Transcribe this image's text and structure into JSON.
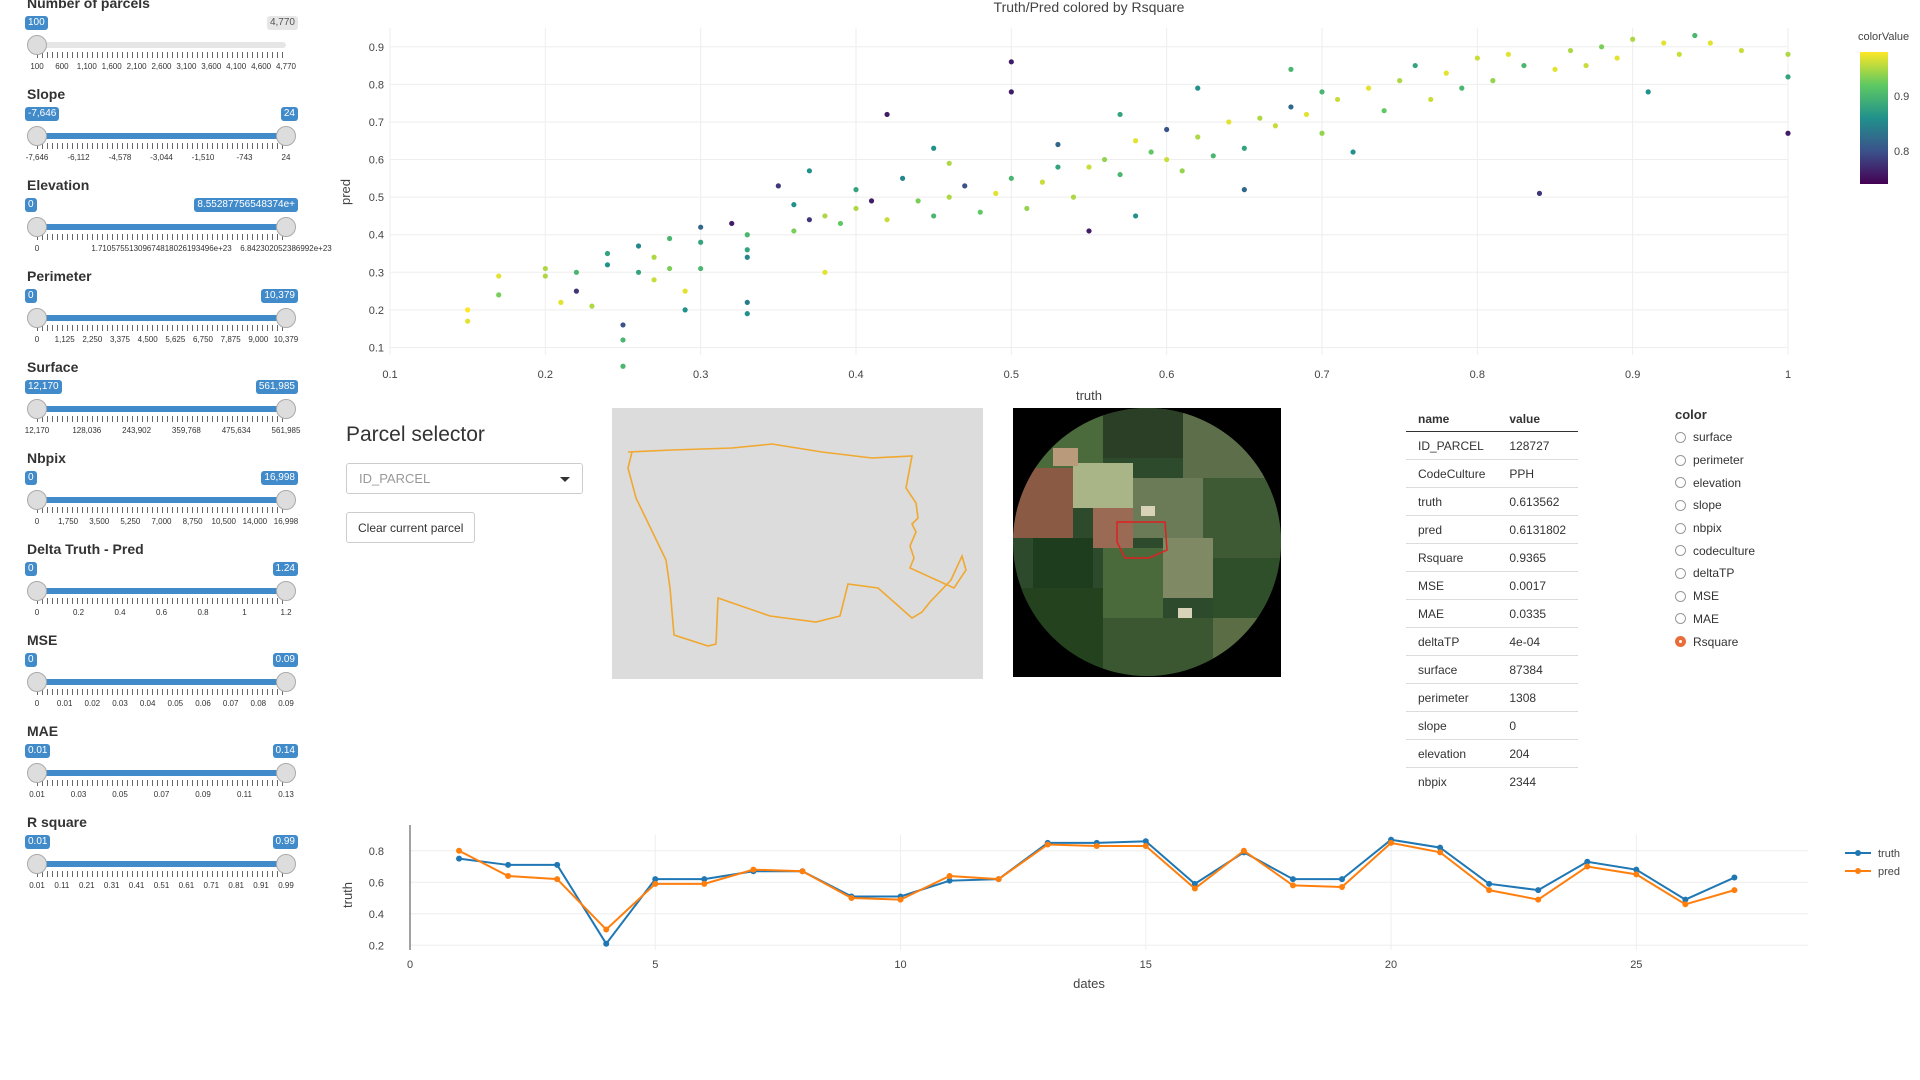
{
  "sliders": [
    {
      "label": "Number of parcels",
      "min_label": "100",
      "max_label": "4,770",
      "lo": 0,
      "hi": 1,
      "mode": "single",
      "ticks": [
        "100",
        "600",
        "1,100",
        "1,600",
        "2,100",
        "2,600",
        "3,100",
        "3,600",
        "4,100",
        "4,600",
        "4,770"
      ]
    },
    {
      "label": "Slope",
      "min_label": "-7,646",
      "max_label": "24",
      "lo": 0,
      "hi": 1,
      "mode": "range",
      "ticks": [
        "-7,646",
        "-6,112",
        "-4,578",
        "-3,044",
        "-1,510",
        "-743",
        "24"
      ]
    },
    {
      "label": "Elevation",
      "min_label": "0",
      "max_label": "8.55287756548374e+",
      "lo": 0,
      "hi": 1,
      "mode": "range",
      "ticks": [
        "0",
        "1.71057551309674818026193496e+23",
        "6.842302052386992e+23"
      ]
    },
    {
      "label": "Perimeter",
      "min_label": "0",
      "max_label": "10,379",
      "lo": 0,
      "hi": 1,
      "mode": "range",
      "ticks": [
        "0",
        "1,125",
        "2,250",
        "3,375",
        "4,500",
        "5,625",
        "6,750",
        "7,875",
        "9,000",
        "10,379"
      ]
    },
    {
      "label": "Surface",
      "min_label": "12,170",
      "max_label": "561,985",
      "lo": 0,
      "hi": 1,
      "mode": "range",
      "ticks": [
        "12,170",
        "128,036",
        "243,902",
        "359,768",
        "475,634",
        "561,985"
      ]
    },
    {
      "label": "Nbpix",
      "min_label": "0",
      "max_label": "16,998",
      "lo": 0,
      "hi": 1,
      "mode": "range",
      "ticks": [
        "0",
        "1,750",
        "3,500",
        "5,250",
        "7,000",
        "8,750",
        "10,500",
        "14,000",
        "16,998"
      ]
    },
    {
      "label": "Delta Truth - Pred",
      "min_label": "0",
      "max_label": "1.24",
      "lo": 0,
      "hi": 1,
      "mode": "range",
      "ticks": [
        "0",
        "0.2",
        "0.4",
        "0.6",
        "0.8",
        "1",
        "1.2"
      ]
    },
    {
      "label": "MSE",
      "min_label": "0",
      "max_label": "0.09",
      "lo": 0,
      "hi": 1,
      "mode": "range",
      "ticks": [
        "0",
        "0.01",
        "0.02",
        "0.03",
        "0.04",
        "0.05",
        "0.06",
        "0.07",
        "0.08",
        "0.09"
      ]
    },
    {
      "label": "MAE",
      "min_label": "0.01",
      "max_label": "0.14",
      "lo": 0,
      "hi": 1,
      "mode": "range",
      "ticks": [
        "0.01",
        "0.03",
        "0.05",
        "0.07",
        "0.09",
        "0.11",
        "0.13"
      ]
    },
    {
      "label": "R square",
      "min_label": "0.01",
      "max_label": "0.99",
      "lo": 0,
      "hi": 1,
      "mode": "range",
      "ticks": [
        "0.01",
        "0.11",
        "0.21",
        "0.31",
        "0.41",
        "0.51",
        "0.61",
        "0.71",
        "0.81",
        "0.91",
        "0.99"
      ]
    }
  ],
  "parcel": {
    "title": "Parcel selector",
    "select_placeholder": "ID_PARCEL",
    "clear_label": "Clear current parcel"
  },
  "table": {
    "headers": [
      "name",
      "value"
    ],
    "rows": [
      [
        "ID_PARCEL",
        "128727"
      ],
      [
        "CodeCulture",
        "PPH"
      ],
      [
        "truth",
        "0.613562"
      ],
      [
        "pred",
        "0.6131802"
      ],
      [
        "Rsquare",
        "0.9365"
      ],
      [
        "MSE",
        "0.0017"
      ],
      [
        "MAE",
        "0.0335"
      ],
      [
        "deltaTP",
        "4e-04"
      ],
      [
        "surface",
        "87384"
      ],
      [
        "perimeter",
        "1308"
      ],
      [
        "slope",
        "0"
      ],
      [
        "elevation",
        "204"
      ],
      [
        "nbpix",
        "2344"
      ]
    ]
  },
  "color_radio": {
    "label": "color",
    "options": [
      "surface",
      "perimeter",
      "elevation",
      "slope",
      "nbpix",
      "codeculture",
      "deltaTP",
      "MSE",
      "MAE",
      "Rsquare"
    ],
    "selected": "Rsquare"
  },
  "colors": {
    "accent": "#428bca",
    "truth": "#1f77b4",
    "pred": "#ff7f0e",
    "parcel_outline": "#f0a830"
  },
  "chart_data": [
    {
      "type": "scatter",
      "title": "Truth/Pred colored by Rsquare",
      "xlabel": "truth",
      "ylabel": "pred",
      "xlim": [
        0.1,
        1.0
      ],
      "ylim": [
        0.08,
        0.95
      ],
      "xticks": [
        "0.1",
        "0.2",
        "0.3",
        "0.4",
        "0.5",
        "0.6",
        "0.7",
        "0.8",
        "0.9",
        "1"
      ],
      "yticks": [
        "0.1",
        "0.2",
        "0.3",
        "0.4",
        "0.5",
        "0.6",
        "0.7",
        "0.8",
        "0.9"
      ],
      "colorbar": {
        "title": "colorValue",
        "ticks": [
          "0.8",
          "0.9"
        ],
        "range": [
          0.74,
          0.98
        ]
      },
      "points": [
        [
          0.15,
          0.2,
          0.98
        ],
        [
          0.15,
          0.17,
          0.97
        ],
        [
          0.17,
          0.29,
          0.97
        ],
        [
          0.17,
          0.24,
          0.93
        ],
        [
          0.2,
          0.31,
          0.95
        ],
        [
          0.2,
          0.29,
          0.95
        ],
        [
          0.21,
          0.22,
          0.97
        ],
        [
          0.22,
          0.3,
          0.9
        ],
        [
          0.22,
          0.25,
          0.78
        ],
        [
          0.23,
          0.21,
          0.95
        ],
        [
          0.24,
          0.35,
          0.88
        ],
        [
          0.24,
          0.32,
          0.86
        ],
        [
          0.25,
          0.16,
          0.8
        ],
        [
          0.25,
          0.12,
          0.9
        ],
        [
          0.25,
          0.05,
          0.9
        ],
        [
          0.26,
          0.37,
          0.85
        ],
        [
          0.26,
          0.3,
          0.88
        ],
        [
          0.27,
          0.34,
          0.95
        ],
        [
          0.27,
          0.28,
          0.96
        ],
        [
          0.28,
          0.31,
          0.93
        ],
        [
          0.28,
          0.39,
          0.9
        ],
        [
          0.29,
          0.25,
          0.97
        ],
        [
          0.3,
          0.42,
          0.82
        ],
        [
          0.3,
          0.31,
          0.9
        ],
        [
          0.29,
          0.2,
          0.86
        ],
        [
          0.3,
          0.38,
          0.88
        ],
        [
          0.32,
          0.43,
          0.76
        ],
        [
          0.33,
          0.4,
          0.9
        ],
        [
          0.33,
          0.36,
          0.88
        ],
        [
          0.33,
          0.34,
          0.85
        ],
        [
          0.33,
          0.22,
          0.84
        ],
        [
          0.33,
          0.19,
          0.86
        ],
        [
          0.35,
          0.53,
          0.78
        ],
        [
          0.36,
          0.48,
          0.86
        ],
        [
          0.36,
          0.41,
          0.93
        ],
        [
          0.37,
          0.57,
          0.86
        ],
        [
          0.37,
          0.44,
          0.78
        ],
        [
          0.38,
          0.3,
          0.97
        ],
        [
          0.38,
          0.45,
          0.95
        ],
        [
          0.39,
          0.43,
          0.92
        ],
        [
          0.4,
          0.52,
          0.88
        ],
        [
          0.4,
          0.47,
          0.95
        ],
        [
          0.41,
          0.49,
          0.76
        ],
        [
          0.42,
          0.44,
          0.96
        ],
        [
          0.42,
          0.72,
          0.76
        ],
        [
          0.43,
          0.55,
          0.85
        ],
        [
          0.44,
          0.49,
          0.93
        ],
        [
          0.45,
          0.63,
          0.86
        ],
        [
          0.45,
          0.45,
          0.9
        ],
        [
          0.46,
          0.5,
          0.95
        ],
        [
          0.46,
          0.59,
          0.95
        ],
        [
          0.47,
          0.53,
          0.8
        ],
        [
          0.48,
          0.46,
          0.92
        ],
        [
          0.49,
          0.51,
          0.97
        ],
        [
          0.5,
          0.55,
          0.9
        ],
        [
          0.5,
          0.86,
          0.76
        ],
        [
          0.5,
          0.78,
          0.76
        ],
        [
          0.51,
          0.47,
          0.94
        ],
        [
          0.52,
          0.54,
          0.96
        ],
        [
          0.53,
          0.58,
          0.88
        ],
        [
          0.53,
          0.64,
          0.82
        ],
        [
          0.54,
          0.5,
          0.95
        ],
        [
          0.55,
          0.58,
          0.96
        ],
        [
          0.55,
          0.41,
          0.76
        ],
        [
          0.56,
          0.6,
          0.94
        ],
        [
          0.57,
          0.56,
          0.9
        ],
        [
          0.57,
          0.72,
          0.88
        ],
        [
          0.58,
          0.65,
          0.97
        ],
        [
          0.58,
          0.45,
          0.86
        ],
        [
          0.59,
          0.62,
          0.92
        ],
        [
          0.6,
          0.6,
          0.96
        ],
        [
          0.6,
          0.68,
          0.8
        ],
        [
          0.61,
          0.57,
          0.94
        ],
        [
          0.62,
          0.66,
          0.95
        ],
        [
          0.62,
          0.79,
          0.86
        ],
        [
          0.63,
          0.61,
          0.9
        ],
        [
          0.64,
          0.7,
          0.97
        ],
        [
          0.65,
          0.63,
          0.88
        ],
        [
          0.65,
          0.52,
          0.82
        ],
        [
          0.66,
          0.71,
          0.95
        ],
        [
          0.67,
          0.69,
          0.96
        ],
        [
          0.68,
          0.74,
          0.82
        ],
        [
          0.68,
          0.84,
          0.9
        ],
        [
          0.69,
          0.72,
          0.97
        ],
        [
          0.7,
          0.67,
          0.94
        ],
        [
          0.7,
          0.78,
          0.9
        ],
        [
          0.71,
          0.76,
          0.96
        ],
        [
          0.72,
          0.62,
          0.86
        ],
        [
          0.73,
          0.79,
          0.97
        ],
        [
          0.74,
          0.73,
          0.92
        ],
        [
          0.75,
          0.81,
          0.95
        ],
        [
          0.76,
          0.85,
          0.88
        ],
        [
          0.77,
          0.76,
          0.96
        ],
        [
          0.78,
          0.83,
          0.97
        ],
        [
          0.79,
          0.79,
          0.9
        ],
        [
          0.8,
          0.87,
          0.96
        ],
        [
          0.81,
          0.81,
          0.94
        ],
        [
          0.82,
          0.88,
          0.97
        ],
        [
          0.83,
          0.85,
          0.9
        ],
        [
          0.84,
          0.51,
          0.78
        ],
        [
          0.85,
          0.84,
          0.97
        ],
        [
          0.86,
          0.89,
          0.95
        ],
        [
          0.87,
          0.85,
          0.96
        ],
        [
          0.88,
          0.9,
          0.93
        ],
        [
          0.89,
          0.87,
          0.97
        ],
        [
          0.9,
          0.92,
          0.95
        ],
        [
          0.91,
          0.78,
          0.86
        ],
        [
          0.92,
          0.91,
          0.97
        ],
        [
          0.93,
          0.88,
          0.96
        ],
        [
          0.94,
          0.93,
          0.9
        ],
        [
          0.95,
          0.91,
          0.97
        ],
        [
          0.97,
          0.89,
          0.96
        ],
        [
          1.0,
          0.88,
          0.95
        ],
        [
          1.0,
          0.82,
          0.88
        ],
        [
          1.0,
          0.67,
          0.76
        ]
      ]
    },
    {
      "type": "line",
      "xlabel": "dates",
      "ylabel": "truth",
      "xlim": [
        0,
        28.5
      ],
      "ylim": [
        0.17,
        0.9
      ],
      "xticks": [
        "0",
        "5",
        "10",
        "15",
        "20",
        "25"
      ],
      "yticks": [
        "0.2",
        "0.4",
        "0.6",
        "0.8"
      ],
      "x": [
        1,
        2,
        3,
        4,
        5,
        6,
        7,
        8,
        9,
        10,
        11,
        12,
        13,
        14,
        15,
        16,
        17,
        18,
        19,
        20,
        21,
        22,
        23,
        24,
        25,
        26,
        27
      ],
      "series": [
        {
          "name": "truth",
          "values": [
            0.75,
            0.71,
            0.71,
            0.21,
            0.62,
            0.62,
            0.67,
            0.67,
            0.51,
            0.51,
            0.61,
            0.62,
            0.85,
            0.85,
            0.86,
            0.59,
            0.79,
            0.62,
            0.62,
            0.87,
            0.82,
            0.59,
            0.55,
            0.73,
            0.68,
            0.49,
            0.63
          ]
        },
        {
          "name": "pred",
          "values": [
            0.8,
            0.64,
            0.62,
            0.3,
            0.59,
            0.59,
            0.68,
            0.67,
            0.5,
            0.49,
            0.64,
            0.62,
            0.84,
            0.83,
            0.83,
            0.56,
            0.8,
            0.58,
            0.57,
            0.85,
            0.79,
            0.55,
            0.49,
            0.7,
            0.65,
            0.46,
            0.55
          ]
        }
      ]
    }
  ]
}
